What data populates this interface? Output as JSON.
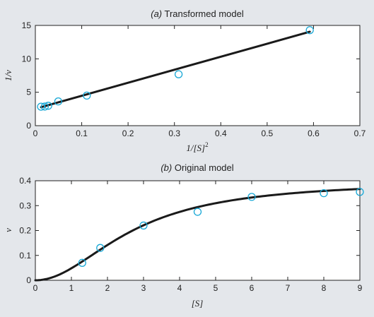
{
  "chart_data": [
    {
      "type": "scatter",
      "title_label": "(a)",
      "title_text": "Transformed model",
      "xlabel": "1/[S]",
      "xlabel_sup": "2",
      "ylabel": "1/v",
      "xlim": [
        0,
        0.7
      ],
      "ylim": [
        0,
        15
      ],
      "xticks": [
        0,
        0.1,
        0.2,
        0.3,
        0.4,
        0.5,
        0.6,
        0.7
      ],
      "yticks": [
        0,
        5,
        10,
        15
      ],
      "xtick_labels": [
        "0",
        "0.1",
        "0.2",
        "0.3",
        "0.4",
        "0.5",
        "0.6",
        "0.7"
      ],
      "ytick_labels": [
        "0",
        "5",
        "10",
        "15"
      ],
      "series": [
        {
          "kind": "points",
          "x": [
            0.0123,
            0.0204,
            0.0278,
            0.0494,
            0.111,
            0.309,
            0.592
          ],
          "y": [
            2.84,
            2.86,
            2.98,
            3.63,
            4.5,
            7.69,
            14.29
          ]
        },
        {
          "kind": "fit-line",
          "x": [
            0.0123,
            0.592
          ],
          "y": [
            2.77,
            14.05
          ]
        }
      ],
      "colors": {
        "points": "#19a8d6",
        "fit": "#1a1a1a"
      },
      "grid": false
    },
    {
      "type": "scatter",
      "title_label": "(b)",
      "title_text": "Original model",
      "xlabel": "[S]",
      "ylabel": "v",
      "xlim": [
        0,
        9
      ],
      "ylim": [
        0,
        0.4
      ],
      "xticks": [
        0,
        1,
        2,
        3,
        4,
        5,
        6,
        7,
        8,
        9
      ],
      "yticks": [
        0,
        0.1,
        0.2,
        0.3,
        0.4
      ],
      "xtick_labels": [
        "0",
        "1",
        "2",
        "3",
        "4",
        "5",
        "6",
        "7",
        "8",
        "9"
      ],
      "ytick_labels": [
        "0",
        "0.1",
        "0.2",
        "0.3",
        "0.4"
      ],
      "series": [
        {
          "kind": "points",
          "x": [
            1.3,
            1.8,
            3,
            4.5,
            6,
            8,
            9
          ],
          "y": [
            0.07,
            0.13,
            0.22,
            0.275,
            0.335,
            0.35,
            0.355
          ]
        },
        {
          "kind": "fit-curve",
          "model": "v = vm*S^2/(ks^2 + S^2)",
          "vm": 0.4,
          "ks": 2.7,
          "xrange": [
            0,
            9
          ]
        }
      ],
      "colors": {
        "points": "#19a8d6",
        "fit": "#1a1a1a"
      },
      "grid": false
    }
  ]
}
